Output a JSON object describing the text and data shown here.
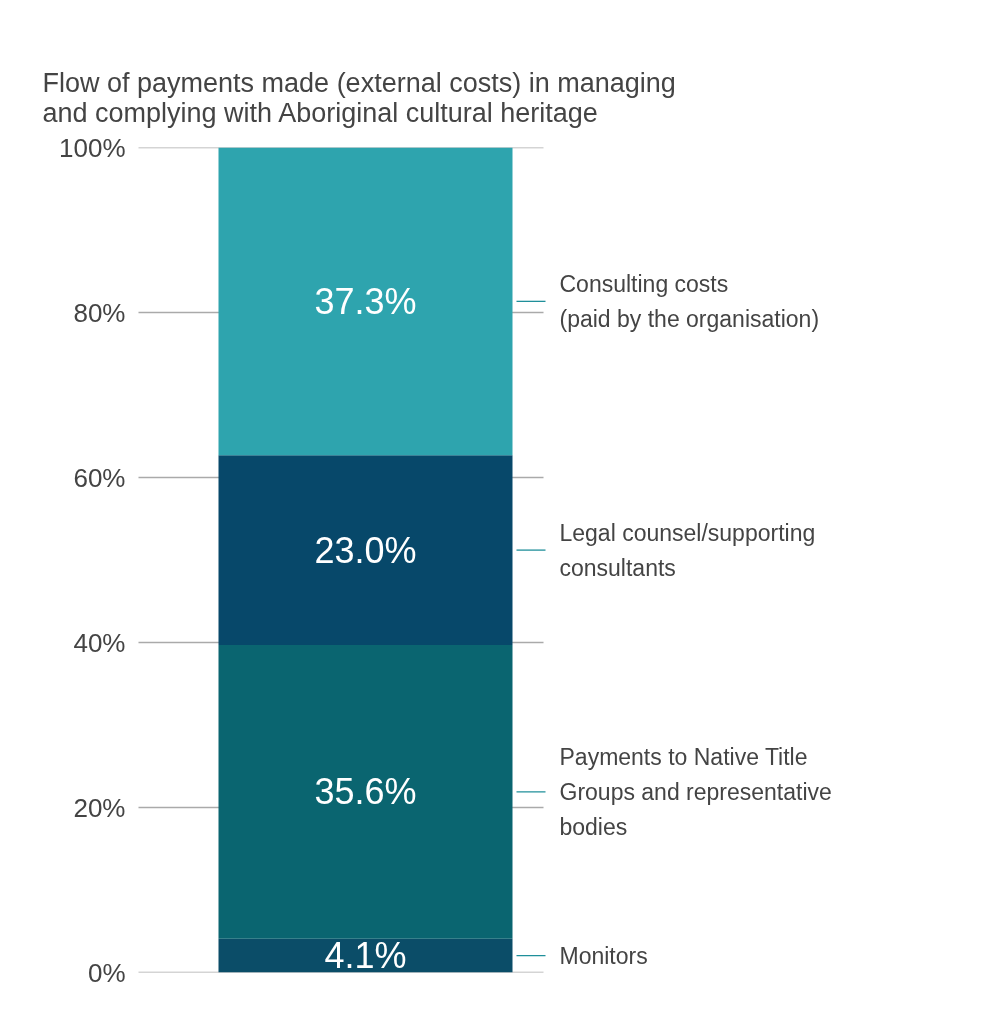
{
  "chart_data": {
    "type": "bar",
    "stacked": true,
    "title": "Flow of payments made (external costs) in managing\nand complying with Aboriginal cultural heritage",
    "categories": [
      null
    ],
    "series": [
      {
        "name": "Monitors",
        "color": "#0b4d68",
        "values": [
          4.1
        ],
        "value_labels": [
          "4.1%"
        ]
      },
      {
        "name": "Payments to Native Title\nGroups and representative\nbodies",
        "color": "#0a6570",
        "values": [
          35.6
        ],
        "value_labels": [
          "35.6%"
        ]
      },
      {
        "name": "Legal counsel/supporting\nconsultants",
        "color": "#07486a",
        "values": [
          23.0
        ],
        "value_labels": [
          "23.0%"
        ]
      },
      {
        "name": "Consulting costs\n(paid by the organisation)",
        "color": "#2ea4ae",
        "values": [
          37.3
        ],
        "value_labels": [
          "37.3%"
        ]
      }
    ],
    "ylim": [
      0,
      100
    ],
    "yticks": [
      {
        "value": 0,
        "label": "0%"
      },
      {
        "value": 20,
        "label": "20%"
      },
      {
        "value": 40,
        "label": "40%"
      },
      {
        "value": 60,
        "label": "60%"
      },
      {
        "value": 80,
        "label": "80%"
      },
      {
        "value": 100,
        "label": "100%"
      }
    ],
    "grid": "y",
    "legend": false,
    "tick_labels": "y"
  }
}
